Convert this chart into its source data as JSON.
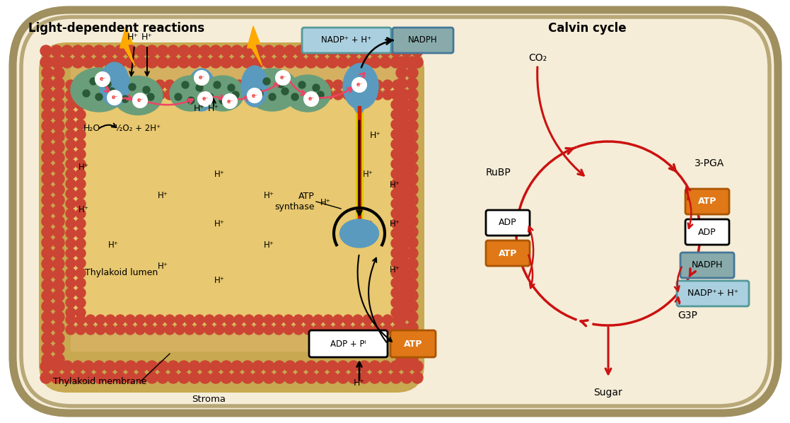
{
  "bg_outer": "#f5edd8",
  "bg_border1": "#a09060",
  "bg_border2": "#b8a878",
  "lumen_color": "#e8c870",
  "stroma_between_color": "#d4b860",
  "membrane_tail_color": "#c8a850",
  "membrane_head_color": "#cc4433",
  "photosystem_green": "#6a9e7a",
  "photosystem_blue": "#5a9abe",
  "electron_color": "#ee3333",
  "pink_arrow": "#ee4466",
  "arrow_red": "#cc1111",
  "arrow_black": "#111111",
  "atp_box_color": "#e07818",
  "adp_box_white": "#ffffff",
  "nadph_box_color": "#88aaaa",
  "nadp_box_color": "#aad0e0",
  "title_left": "Light-dependent reactions",
  "title_right": "Calvin cycle",
  "label_h2o": "H₂O",
  "label_halfO2": "½O₂ + 2H⁺",
  "label_hplus": "H⁺",
  "label_atp_synthase": "ATP\nsynthase",
  "label_thylakoid_lumen": "Thylakoid lumen",
  "label_thylakoid_membrane": "Thylakoid membrane",
  "label_stroma": "Stroma",
  "label_adp_pi": "ADP + Pᴵ",
  "label_atp": "ATP",
  "label_co2": "CO₂",
  "label_rubp": "RuBP",
  "label_3pga": "3-PGA",
  "label_g3p": "G3P",
  "label_sugar": "Sugar",
  "label_adp": "ADP",
  "label_nadph": "NADPH",
  "label_nadp_hplus": "NADP⁺+ H⁺",
  "label_nadp_hplus_top": "NADP⁺ + H⁺",
  "label_nadph_top": "NADPH"
}
